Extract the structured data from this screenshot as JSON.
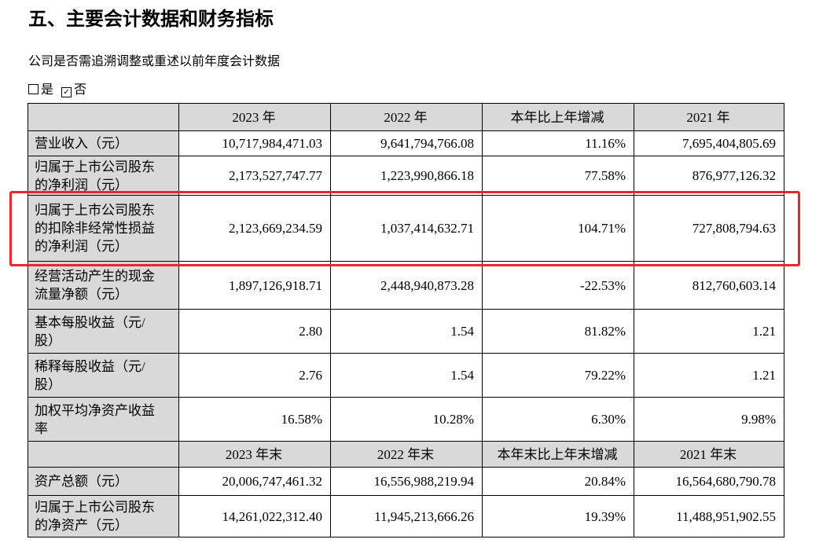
{
  "header": {
    "title": "五、主要会计数据和财务指标",
    "subtitle": "公司是否需追溯调整或重述以前年度会计数据",
    "options": [
      "是",
      "否"
    ]
  },
  "table": {
    "sections": [
      {
        "columns": [
          "2023 年",
          "2022 年",
          "本年比上年增减",
          "2021 年"
        ],
        "rows": [
          {
            "label": "营业收入（元）",
            "values": [
              "10,717,984,471.03",
              "9,641,794,766.08",
              "11.16%",
              "7,695,404,805.69"
            ]
          },
          {
            "label": "归属于上市公司股东的净利润（元）",
            "values": [
              "2,173,527,747.77",
              "1,223,990,866.18",
              "77.58%",
              "876,977,126.32"
            ]
          },
          {
            "label": "归属于上市公司股东的扣除非经常性损益的净利润（元）",
            "values": [
              "2,123,669,234.59",
              "1,037,414,632.71",
              "104.71%",
              "727,808,794.63"
            ]
          },
          {
            "label": "经营活动产生的现金流量净额（元）",
            "values": [
              "1,897,126,918.71",
              "2,448,940,873.28",
              "-22.53%",
              "812,760,603.14"
            ]
          },
          {
            "label": "基本每股收益（元/股）",
            "values": [
              "2.80",
              "1.54",
              "81.82%",
              "1.21"
            ]
          },
          {
            "label": "稀释每股收益（元/股）",
            "values": [
              "2.76",
              "1.54",
              "79.22%",
              "1.21"
            ]
          },
          {
            "label": "加权平均净资产收益率",
            "values": [
              "16.58%",
              "10.28%",
              "6.30%",
              "9.98%"
            ]
          }
        ]
      },
      {
        "columns": [
          "2023 年末",
          "2022 年末",
          "本年末比上年末增减",
          "2021 年末"
        ],
        "rows": [
          {
            "label": "资产总额（元）",
            "values": [
              "20,006,747,461.32",
              "16,556,988,219.94",
              "20.84%",
              "16,564,680,790.78"
            ]
          },
          {
            "label": "归属于上市公司股东的净资产（元）",
            "values": [
              "14,261,022,312.40",
              "11,945,213,666.26",
              "19.39%",
              "11,488,951,902.55"
            ]
          }
        ]
      }
    ]
  }
}
